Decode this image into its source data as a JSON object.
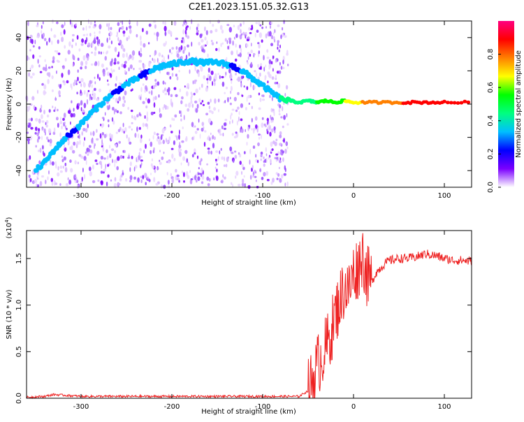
{
  "title": "C2E1.2023.151.05.32.G13",
  "chart_data": [
    {
      "type": "heatmap",
      "xlabel": "Height of straight line (km)",
      "ylabel": "Frequency (Hz)",
      "xlim": [
        -360,
        130
      ],
      "ylim": [
        -50,
        50
      ],
      "x_ticks": [
        -300,
        -200,
        -100,
        0,
        100
      ],
      "y_ticks": [
        -40,
        -20,
        0,
        20,
        40
      ],
      "noise_region_x": [
        -360,
        -72
      ],
      "colorbar": {
        "label": "Normalized spectral amplitude",
        "range": [
          0,
          1
        ],
        "ticks": [
          "0.0",
          "0.2",
          "0.4",
          "0.6",
          "0.8"
        ],
        "colors": [
          "#ffffff",
          "#7b00ff",
          "#0000ff",
          "#00bfff",
          "#00ff80",
          "#00ff00",
          "#ffff00",
          "#ff8000",
          "#ff0000",
          "#ff0080"
        ]
      },
      "trace": {
        "x": [
          -350,
          -340,
          -330,
          -320,
          -310,
          -300,
          -290,
          -280,
          -270,
          -260,
          -250,
          -240,
          -230,
          -220,
          -210,
          -200,
          -190,
          -180,
          -170,
          -160,
          -150,
          -140,
          -130,
          -120,
          -110,
          -100,
          -90,
          -80,
          -70,
          -60,
          -50,
          -40,
          -30,
          -20,
          -10,
          0,
          20,
          40,
          60,
          80,
          100,
          130
        ],
        "y": [
          -40,
          -35,
          -28,
          -22,
          -17,
          -12,
          -6,
          -1,
          4,
          8,
          12,
          15,
          18,
          21,
          23,
          24,
          25,
          26,
          25,
          25,
          25,
          24,
          22,
          19,
          15,
          11,
          7,
          3,
          2,
          1,
          2,
          1,
          2,
          1,
          2,
          1,
          1,
          1,
          1,
          1,
          1,
          1
        ],
        "amplitude": [
          0.3,
          0.35,
          0.3,
          0.3,
          0.25,
          0.3,
          0.35,
          0.3,
          0.3,
          0.25,
          0.3,
          0.3,
          0.25,
          0.3,
          0.3,
          0.35,
          0.3,
          0.3,
          0.3,
          0.3,
          0.35,
          0.3,
          0.25,
          0.3,
          0.35,
          0.3,
          0.3,
          0.4,
          0.45,
          0.45,
          0.45,
          0.5,
          0.5,
          0.55,
          0.6,
          0.7,
          0.75,
          0.8,
          0.85,
          0.85,
          0.85,
          0.85
        ]
      }
    },
    {
      "type": "line",
      "xlabel": "Height of straight line (km)",
      "ylabel": "SNR (10 * v/v)",
      "y_multiplier_label": "(x10",
      "y_multiplier_exp": "4",
      "y_multiplier_close": ")",
      "xlim": [
        -360,
        130
      ],
      "ylim": [
        0,
        1.8
      ],
      "x_ticks": [
        -300,
        -200,
        -100,
        0,
        100
      ],
      "y_ticks": [
        "0.0",
        "0.5",
        "1.0",
        "1.5"
      ],
      "series": [
        {
          "color": "#ee2222",
          "x": [
            -360,
            -340,
            -330,
            -300,
            -250,
            -200,
            -150,
            -100,
            -60,
            -50,
            -45,
            -40,
            -35,
            -30,
            -25,
            -20,
            -15,
            -10,
            -5,
            0,
            5,
            10,
            15,
            20,
            25,
            30,
            35,
            40,
            50,
            60,
            70,
            80,
            90,
            100,
            110,
            120,
            130
          ],
          "y": [
            0.01,
            0.02,
            0.04,
            0.02,
            0.02,
            0.02,
            0.02,
            0.02,
            0.02,
            0.08,
            0.2,
            0.35,
            0.45,
            0.55,
            0.7,
            0.9,
            1.05,
            1.2,
            1.15,
            1.35,
            1.4,
            1.55,
            1.3,
            1.25,
            1.35,
            1.4,
            1.45,
            1.48,
            1.5,
            1.5,
            1.52,
            1.55,
            1.53,
            1.5,
            1.48,
            1.48,
            1.47
          ]
        }
      ]
    }
  ]
}
